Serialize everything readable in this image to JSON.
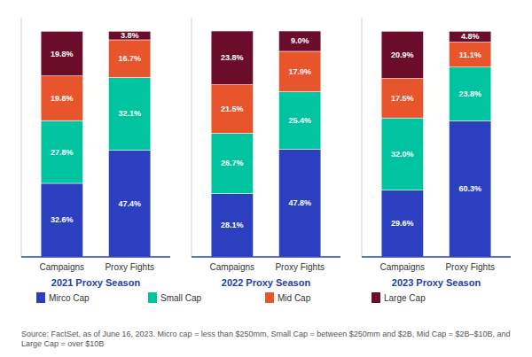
{
  "chart_data": [
    {
      "type": "bar",
      "stacked": true,
      "data_labels": true,
      "tick_labels": "x",
      "legend": "bottom",
      "x_label": "2021 Proxy Season",
      "categories": [
        "Campaigns",
        "Proxy Fights"
      ],
      "ylim": [
        0,
        106
      ],
      "annotations": [
        "Source: FactSet, as of June 16, 2023. Micro cap = less than $250mm, Small Cap = between $250mm and $2B, Mid Cap = $2B–$10B, and Large Cap = over $10B"
      ],
      "series": [
        {
          "name": "Mirco Cap",
          "color": "#2B3FBF",
          "values": [
            32.6,
            47.4
          ],
          "value_labels": [
            "32.6%",
            "47.4%"
          ]
        },
        {
          "name": "Small Cap",
          "color": "#00C4A0",
          "values": [
            27.8,
            32.1
          ],
          "value_labels": [
            "27.8%",
            "32.1%"
          ]
        },
        {
          "name": "Mid Cap",
          "color": "#E8552D",
          "values": [
            19.8,
            16.7
          ],
          "value_labels": [
            "19.8%",
            "16.7%"
          ]
        },
        {
          "name": "Large Cap",
          "color": "#6B0D2A",
          "values": [
            19.8,
            3.8
          ],
          "value_labels": [
            "19.8%",
            "3.8%"
          ]
        }
      ]
    },
    {
      "type": "bar",
      "stacked": true,
      "data_labels": true,
      "tick_labels": "x",
      "legend": "bottom",
      "x_label": "2022 Proxy Season",
      "categories": [
        "Campaigns",
        "Proxy Fights"
      ],
      "ylim": [
        0,
        106
      ],
      "series": [
        {
          "name": "Mirco Cap",
          "color": "#2B3FBF",
          "values": [
            28.1,
            47.8
          ],
          "value_labels": [
            "28.1%",
            "47.8%"
          ]
        },
        {
          "name": "Small Cap",
          "color": "#00C4A0",
          "values": [
            26.7,
            25.4
          ],
          "value_labels": [
            "26.7%",
            "25.4%"
          ]
        },
        {
          "name": "Mid Cap",
          "color": "#E8552D",
          "values": [
            21.5,
            17.9
          ],
          "value_labels": [
            "21.5%",
            "17.9%"
          ]
        },
        {
          "name": "Large Cap",
          "color": "#6B0D2A",
          "values": [
            23.8,
            9.0
          ],
          "value_labels": [
            "23.8%",
            "9.0%"
          ]
        }
      ]
    },
    {
      "type": "bar",
      "stacked": true,
      "data_labels": true,
      "tick_labels": "x",
      "legend": "bottom",
      "x_label": "2023 Proxy Season",
      "categories": [
        "Campaigns",
        "Proxy Fights"
      ],
      "ylim": [
        0,
        106
      ],
      "series": [
        {
          "name": "Mirco Cap",
          "color": "#2B3FBF",
          "values": [
            29.6,
            60.3
          ],
          "value_labels": [
            "29.6%",
            "60.3%"
          ]
        },
        {
          "name": "Small Cap",
          "color": "#00C4A0",
          "values": [
            32.0,
            23.8
          ],
          "value_labels": [
            "32.0%",
            "23.8%"
          ]
        },
        {
          "name": "Mid Cap",
          "color": "#E8552D",
          "values": [
            17.5,
            11.1
          ],
          "value_labels": [
            "17.5%",
            "11.1%"
          ]
        },
        {
          "name": "Large Cap",
          "color": "#6B0D2A",
          "values": [
            20.9,
            4.8
          ],
          "value_labels": [
            "20.9%",
            "4.8%"
          ]
        }
      ]
    }
  ]
}
